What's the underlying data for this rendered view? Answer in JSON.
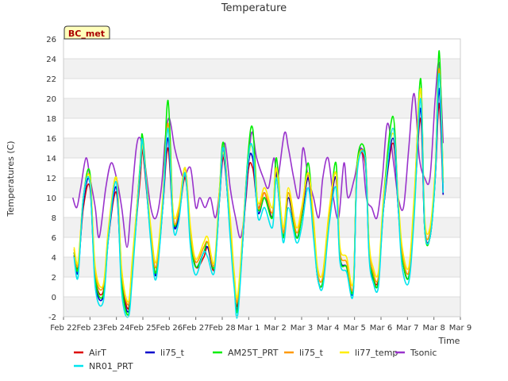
{
  "chart_data": {
    "type": "line",
    "title": "Temperature",
    "xlabel": "Time",
    "ylabel": "Temperatures (C)",
    "station_label": "BC_met",
    "ylim": [
      -2,
      26
    ],
    "yticks": [
      -2,
      0,
      2,
      4,
      6,
      8,
      10,
      12,
      14,
      16,
      18,
      20,
      22,
      24,
      26
    ],
    "xlim": [
      0,
      15
    ],
    "xticks": [
      {
        "x": 0,
        "label": "Feb 22"
      },
      {
        "x": 1,
        "label": "Feb 23"
      },
      {
        "x": 2,
        "label": "Feb 24"
      },
      {
        "x": 3,
        "label": "Feb 25"
      },
      {
        "x": 4,
        "label": "Feb 26"
      },
      {
        "x": 5,
        "label": "Feb 27"
      },
      {
        "x": 6,
        "label": "Feb 28"
      },
      {
        "x": 7,
        "label": "Mar 1"
      },
      {
        "x": 8,
        "label": "Mar 2"
      },
      {
        "x": 9,
        "label": "Mar 3"
      },
      {
        "x": 10,
        "label": "Mar 4"
      },
      {
        "x": 11,
        "label": "Mar 5"
      },
      {
        "x": 12,
        "label": "Mar 6"
      },
      {
        "x": 13,
        "label": "Mar 7"
      },
      {
        "x": 14,
        "label": "Mar 8"
      },
      {
        "x": 15,
        "label": "Mar 9"
      }
    ],
    "grid": true,
    "legend_position": "bottom",
    "series": [
      {
        "name": "AirT",
        "color": "#dd0000",
        "x": [
          0.4,
          0.55,
          0.75,
          1.0,
          1.2,
          1.5,
          1.7,
          2.0,
          2.2,
          2.45,
          2.6,
          2.9,
          3.0,
          3.3,
          3.5,
          3.75,
          3.95,
          4.15,
          4.35,
          4.6,
          4.8,
          5.0,
          5.3,
          5.45,
          5.7,
          5.9,
          6.05,
          6.3,
          6.45,
          6.6,
          6.95,
          7.15,
          7.35,
          7.6,
          7.9,
          8.05,
          8.3,
          8.5,
          8.8,
          9.0,
          9.25,
          9.45,
          9.6,
          9.8,
          10.05,
          10.3,
          10.45,
          10.7,
          10.95,
          11.1,
          11.4,
          11.55,
          11.7,
          11.9,
          12.1,
          12.45,
          12.65,
          12.8,
          13.05,
          13.25,
          13.5,
          13.65,
          13.85,
          14.05,
          14.2,
          14.35
        ],
        "y": [
          4.5,
          3,
          9,
          11,
          2,
          0.5,
          6,
          10.5,
          2,
          -1.2,
          3,
          12,
          14.5,
          6,
          2.5,
          9,
          15,
          7.5,
          8,
          12,
          6.5,
          3,
          4,
          5,
          2.8,
          10,
          14,
          7,
          2,
          -0.5,
          12,
          13,
          9,
          10.5,
          8,
          12,
          6,
          10,
          6,
          8,
          12,
          7,
          2,
          1.5,
          8,
          12,
          4,
          3,
          0.8,
          13,
          13.5,
          5,
          2,
          1.8,
          9,
          15.5,
          9,
          4,
          2,
          9,
          18,
          7,
          6,
          12,
          19.5,
          10.3
        ]
      },
      {
        "name": "NR01_PRT",
        "color": "#00e5ee",
        "x": [
          0.4,
          0.55,
          0.75,
          1.0,
          1.2,
          1.5,
          1.7,
          2.0,
          2.2,
          2.45,
          2.6,
          2.9,
          3.0,
          3.3,
          3.5,
          3.75,
          3.95,
          4.15,
          4.35,
          4.6,
          4.8,
          5.0,
          5.3,
          5.45,
          5.7,
          5.9,
          6.05,
          6.3,
          6.45,
          6.6,
          6.95,
          7.15,
          7.35,
          7.6,
          7.9,
          8.05,
          8.3,
          8.5,
          8.8,
          9.0,
          9.25,
          9.45,
          9.6,
          9.8,
          10.05,
          10.3,
          10.45,
          10.7,
          10.95,
          11.1,
          11.4,
          11.55,
          11.7,
          11.9,
          12.1,
          12.45,
          12.65,
          12.8,
          13.05,
          13.25,
          13.5,
          13.65,
          13.85,
          14.05,
          14.2,
          14.35
        ],
        "y": [
          4,
          2,
          10,
          11.5,
          1,
          -0.5,
          6,
          11.5,
          0.5,
          -2,
          2,
          13,
          15.5,
          5.5,
          1.8,
          9,
          17,
          7,
          7.5,
          12.5,
          5,
          2.2,
          4.5,
          4,
          2.5,
          10,
          15,
          6,
          1,
          -1.5,
          13,
          15,
          8,
          9,
          7,
          12,
          5.5,
          9,
          5.5,
          7,
          11,
          6,
          2,
          1,
          7.5,
          11,
          3.5,
          2.5,
          0.3,
          12.5,
          14,
          4,
          1.5,
          1,
          9,
          17,
          9,
          3,
          1.5,
          8,
          20,
          7,
          6,
          12,
          22.5,
          10.5
        ]
      },
      {
        "name": "li75_t",
        "color": "#0000cc",
        "x": [
          0.4,
          0.55,
          0.75,
          1.0,
          1.2,
          1.5,
          1.7,
          2.0,
          2.2,
          2.45,
          2.6,
          2.9,
          3.0,
          3.3,
          3.5,
          3.75,
          3.95,
          4.15,
          4.35,
          4.6,
          4.8,
          5.0,
          5.3,
          5.45,
          5.7,
          5.9,
          6.05,
          6.3,
          6.45,
          6.6,
          6.95,
          7.15,
          7.35,
          7.6,
          7.9,
          8.05,
          8.3,
          8.5,
          8.8,
          9.0,
          9.25,
          9.45,
          9.6,
          9.8,
          10.05,
          10.3,
          10.45,
          10.7,
          10.95,
          11.1,
          11.4,
          11.55,
          11.7,
          11.9,
          12.1,
          12.45,
          12.65,
          12.8,
          13.05,
          13.25,
          13.5,
          13.65,
          13.85,
          14.05,
          14.2,
          14.35
        ],
        "y": [
          4.2,
          2.5,
          9.5,
          11.5,
          1.5,
          0,
          6,
          11,
          1.5,
          -1.5,
          2.5,
          13,
          15,
          6,
          2.2,
          9,
          16,
          7.5,
          8,
          12.5,
          6,
          3,
          4.5,
          5,
          3,
          10,
          14.5,
          6.5,
          1.5,
          -0.8,
          12.5,
          14,
          8.5,
          10,
          8,
          12.5,
          6,
          10,
          6,
          8,
          12,
          7,
          2,
          1.5,
          8,
          12,
          4,
          3,
          0.6,
          13,
          14,
          4.5,
          1.8,
          1.5,
          9,
          16,
          9,
          4,
          2,
          9,
          19,
          7,
          6,
          12,
          21,
          10.3
        ]
      },
      {
        "name": "AM25T_PRT",
        "color": "#00ee00",
        "x": [
          0.4,
          0.55,
          0.75,
          1.0,
          1.2,
          1.5,
          1.7,
          2.0,
          2.2,
          2.45,
          2.6,
          2.9,
          3.0,
          3.3,
          3.5,
          3.75,
          3.95,
          4.15,
          4.35,
          4.6,
          4.8,
          5.0,
          5.3,
          5.45,
          5.7,
          5.9,
          6.05,
          6.3,
          6.45,
          6.6,
          6.95,
          7.15,
          7.35,
          7.6,
          7.9,
          8.05,
          8.3,
          8.5,
          8.8,
          9.0,
          9.25,
          9.45,
          9.6,
          9.8,
          10.05,
          10.3,
          10.45,
          10.7,
          10.95,
          11.1,
          11.4,
          11.55,
          11.7,
          11.9,
          12.1,
          12.45,
          12.65,
          12.8,
          13.05,
          13.25,
          13.5,
          13.65,
          13.85,
          14.05,
          14.2,
          14.35
        ],
        "y": [
          4.5,
          2.8,
          10,
          12.5,
          2,
          0.2,
          6.5,
          12,
          1.5,
          -1.8,
          3,
          13.5,
          16,
          6,
          2.5,
          9.5,
          19.8,
          8,
          8.5,
          13,
          6,
          3,
          4.5,
          5.5,
          3,
          11,
          15.5,
          7,
          1.8,
          -1,
          13.5,
          17,
          9,
          10,
          8,
          14,
          6,
          10.5,
          6,
          8,
          13.5,
          7,
          2,
          1.5,
          8,
          13.5,
          4,
          3,
          0.8,
          13.5,
          14.5,
          5,
          2,
          1.5,
          10,
          18.2,
          9.5,
          4,
          2,
          9,
          22,
          7,
          6,
          12.5,
          24.8,
          11.5
        ]
      },
      {
        "name": "li75_t",
        "color": "#ff9900",
        "x": [
          0.4,
          0.55,
          0.75,
          1.0,
          1.2,
          1.5,
          1.7,
          2.0,
          2.2,
          2.45,
          2.6,
          2.9,
          3.0,
          3.3,
          3.5,
          3.75,
          3.95,
          4.15,
          4.35,
          4.6,
          4.8,
          5.0,
          5.3,
          5.45,
          5.7,
          5.9,
          6.05,
          6.3,
          6.45,
          6.6,
          6.95,
          7.15,
          7.35,
          7.6,
          7.9,
          8.05,
          8.3,
          8.5,
          8.8,
          9.0,
          9.25,
          9.45,
          9.6,
          9.8,
          10.05,
          10.3,
          10.45,
          10.7,
          10.95,
          11.1,
          11.4,
          11.55,
          11.7,
          11.9,
          12.1,
          12.45,
          12.65,
          12.8,
          13.05,
          13.25,
          13.5,
          13.65,
          13.85,
          14.05,
          14.2,
          14.35
        ],
        "y": [
          4.8,
          3.2,
          10,
          12,
          2.5,
          1,
          6.5,
          12,
          2.5,
          -0.8,
          3.5,
          13,
          15.5,
          6.5,
          3,
          9.5,
          17.5,
          8,
          8.5,
          13,
          6.5,
          3.5,
          5,
          5.5,
          3.2,
          10.5,
          15,
          7.5,
          2.2,
          0,
          13,
          15,
          9,
          10.5,
          8.5,
          13,
          6.5,
          10.5,
          6.5,
          8.5,
          12.5,
          7.5,
          2.5,
          2,
          8.5,
          12.5,
          4.5,
          3.5,
          1,
          13,
          14,
          5,
          2.5,
          2,
          9.5,
          17,
          9.5,
          4.5,
          2.5,
          9.5,
          21,
          7.5,
          6.5,
          12.5,
          23,
          11.5
        ]
      },
      {
        "name": "li77_temp",
        "color": "#ffee00",
        "x": [
          0.4,
          0.55,
          0.75,
          1.0,
          1.2,
          1.5,
          1.7,
          2.0,
          2.2,
          2.45,
          2.6,
          2.9,
          3.0,
          3.3,
          3.5,
          3.75,
          3.95,
          4.15,
          4.35,
          4.6,
          4.8,
          5.0,
          5.3,
          5.45,
          5.7,
          5.9,
          6.05,
          6.3,
          6.45,
          6.6,
          6.95,
          7.15,
          7.35,
          7.6,
          7.9,
          8.05,
          8.3,
          8.5,
          8.8,
          9.0,
          9.25,
          9.45,
          9.6,
          9.8,
          10.05,
          10.3,
          10.45,
          10.7,
          10.95,
          11.1,
          11.4,
          11.55,
          11.7,
          11.9,
          12.1,
          12.45,
          12.65,
          12.8,
          13.05,
          13.25,
          13.5,
          13.65,
          13.85,
          14.05,
          14.2,
          14.35
        ],
        "y": [
          5,
          3.5,
          10,
          12,
          3,
          1.2,
          7,
          12,
          2.8,
          -0.5,
          3.8,
          13,
          15,
          7,
          3.5,
          10,
          17,
          8.5,
          9,
          13,
          7,
          3.8,
          5.5,
          6,
          3.5,
          11,
          14.5,
          8,
          2.5,
          0.5,
          13,
          15,
          9.5,
          11,
          9,
          13,
          7,
          11,
          7,
          9,
          12.5,
          8,
          3,
          2.5,
          9,
          12.5,
          5,
          4,
          1.5,
          13,
          14,
          5.5,
          3,
          2.5,
          10,
          16.5,
          10,
          5,
          3,
          10,
          21,
          8,
          7,
          13,
          22.5,
          12
        ]
      },
      {
        "name": "Tsonic",
        "color": "#9933cc",
        "x": [
          0.35,
          0.5,
          0.65,
          0.85,
          1.0,
          1.2,
          1.35,
          1.6,
          1.8,
          2.0,
          2.2,
          2.4,
          2.55,
          2.75,
          2.9,
          3.05,
          3.3,
          3.5,
          3.7,
          3.85,
          4.0,
          4.2,
          4.4,
          4.55,
          4.8,
          5.0,
          5.15,
          5.35,
          5.55,
          5.75,
          5.95,
          6.1,
          6.3,
          6.5,
          6.7,
          6.9,
          7.1,
          7.3,
          7.55,
          7.75,
          7.95,
          8.1,
          8.35,
          8.5,
          8.7,
          8.9,
          9.05,
          9.25,
          9.45,
          9.65,
          9.8,
          10.0,
          10.2,
          10.4,
          10.6,
          10.75,
          11.0,
          11.25,
          11.45,
          11.65,
          11.85,
          12.05,
          12.25,
          12.5,
          12.65,
          12.85,
          13.05,
          13.25,
          13.45,
          13.65,
          13.85,
          14.05,
          14.2,
          14.35
        ],
        "y": [
          10,
          9,
          11,
          14,
          12,
          9,
          6,
          11,
          13.5,
          12,
          9,
          5,
          9,
          15,
          16,
          14,
          9,
          8,
          11,
          16,
          18,
          15,
          13,
          12,
          13,
          9,
          10,
          9,
          10,
          8,
          12,
          15.5,
          11,
          8,
          6,
          10,
          16.5,
          14,
          12,
          11,
          14,
          12,
          16.5,
          15,
          12,
          10,
          15,
          12,
          10,
          8,
          12,
          14,
          10,
          8,
          13.5,
          10,
          12,
          15,
          10,
          9,
          8,
          12,
          17.5,
          13,
          10,
          9,
          15,
          20.5,
          14,
          12,
          12,
          20,
          23.5,
          15.5
        ]
      }
    ]
  }
}
